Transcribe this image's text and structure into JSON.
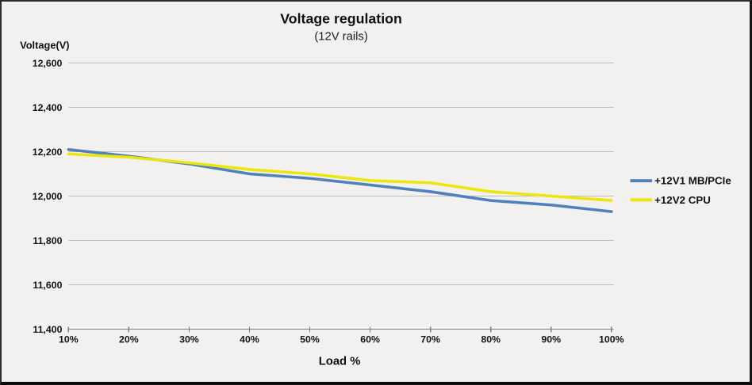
{
  "chart_data": {
    "type": "line",
    "title": "Voltage regulation",
    "subtitle": "(12V rails)",
    "xlabel": "Load %",
    "ylabel": "Voltage(V)",
    "categories": [
      "10%",
      "20%",
      "30%",
      "40%",
      "50%",
      "60%",
      "70%",
      "80%",
      "90%",
      "100%"
    ],
    "ylim": [
      11400,
      12600
    ],
    "ytick_step": 200,
    "yticks": [
      {
        "value": 11400,
        "label": "11,400"
      },
      {
        "value": 11600,
        "label": "11,600"
      },
      {
        "value": 11800,
        "label": "11,800"
      },
      {
        "value": 12000,
        "label": "12,000"
      },
      {
        "value": 12200,
        "label": "12,200"
      },
      {
        "value": 12400,
        "label": "12,400"
      },
      {
        "value": 12600,
        "label": "12,600"
      }
    ],
    "grid": true,
    "legend_position": "right",
    "series": [
      {
        "name": "+12V1 MB/PCIe",
        "color": "#4f81bd",
        "values": [
          12210,
          12180,
          12145,
          12100,
          12080,
          12050,
          12020,
          11980,
          11960,
          11930
        ]
      },
      {
        "name": "+12V2 CPU",
        "color": "#ece60f",
        "values": [
          12190,
          12175,
          12150,
          12120,
          12100,
          12070,
          12060,
          12020,
          12000,
          11980
        ]
      }
    ],
    "colors": {
      "background": "#f2f1f0",
      "gridline": "#bcbcbc",
      "axis": "#7f7f7f",
      "text": "#111111"
    }
  }
}
